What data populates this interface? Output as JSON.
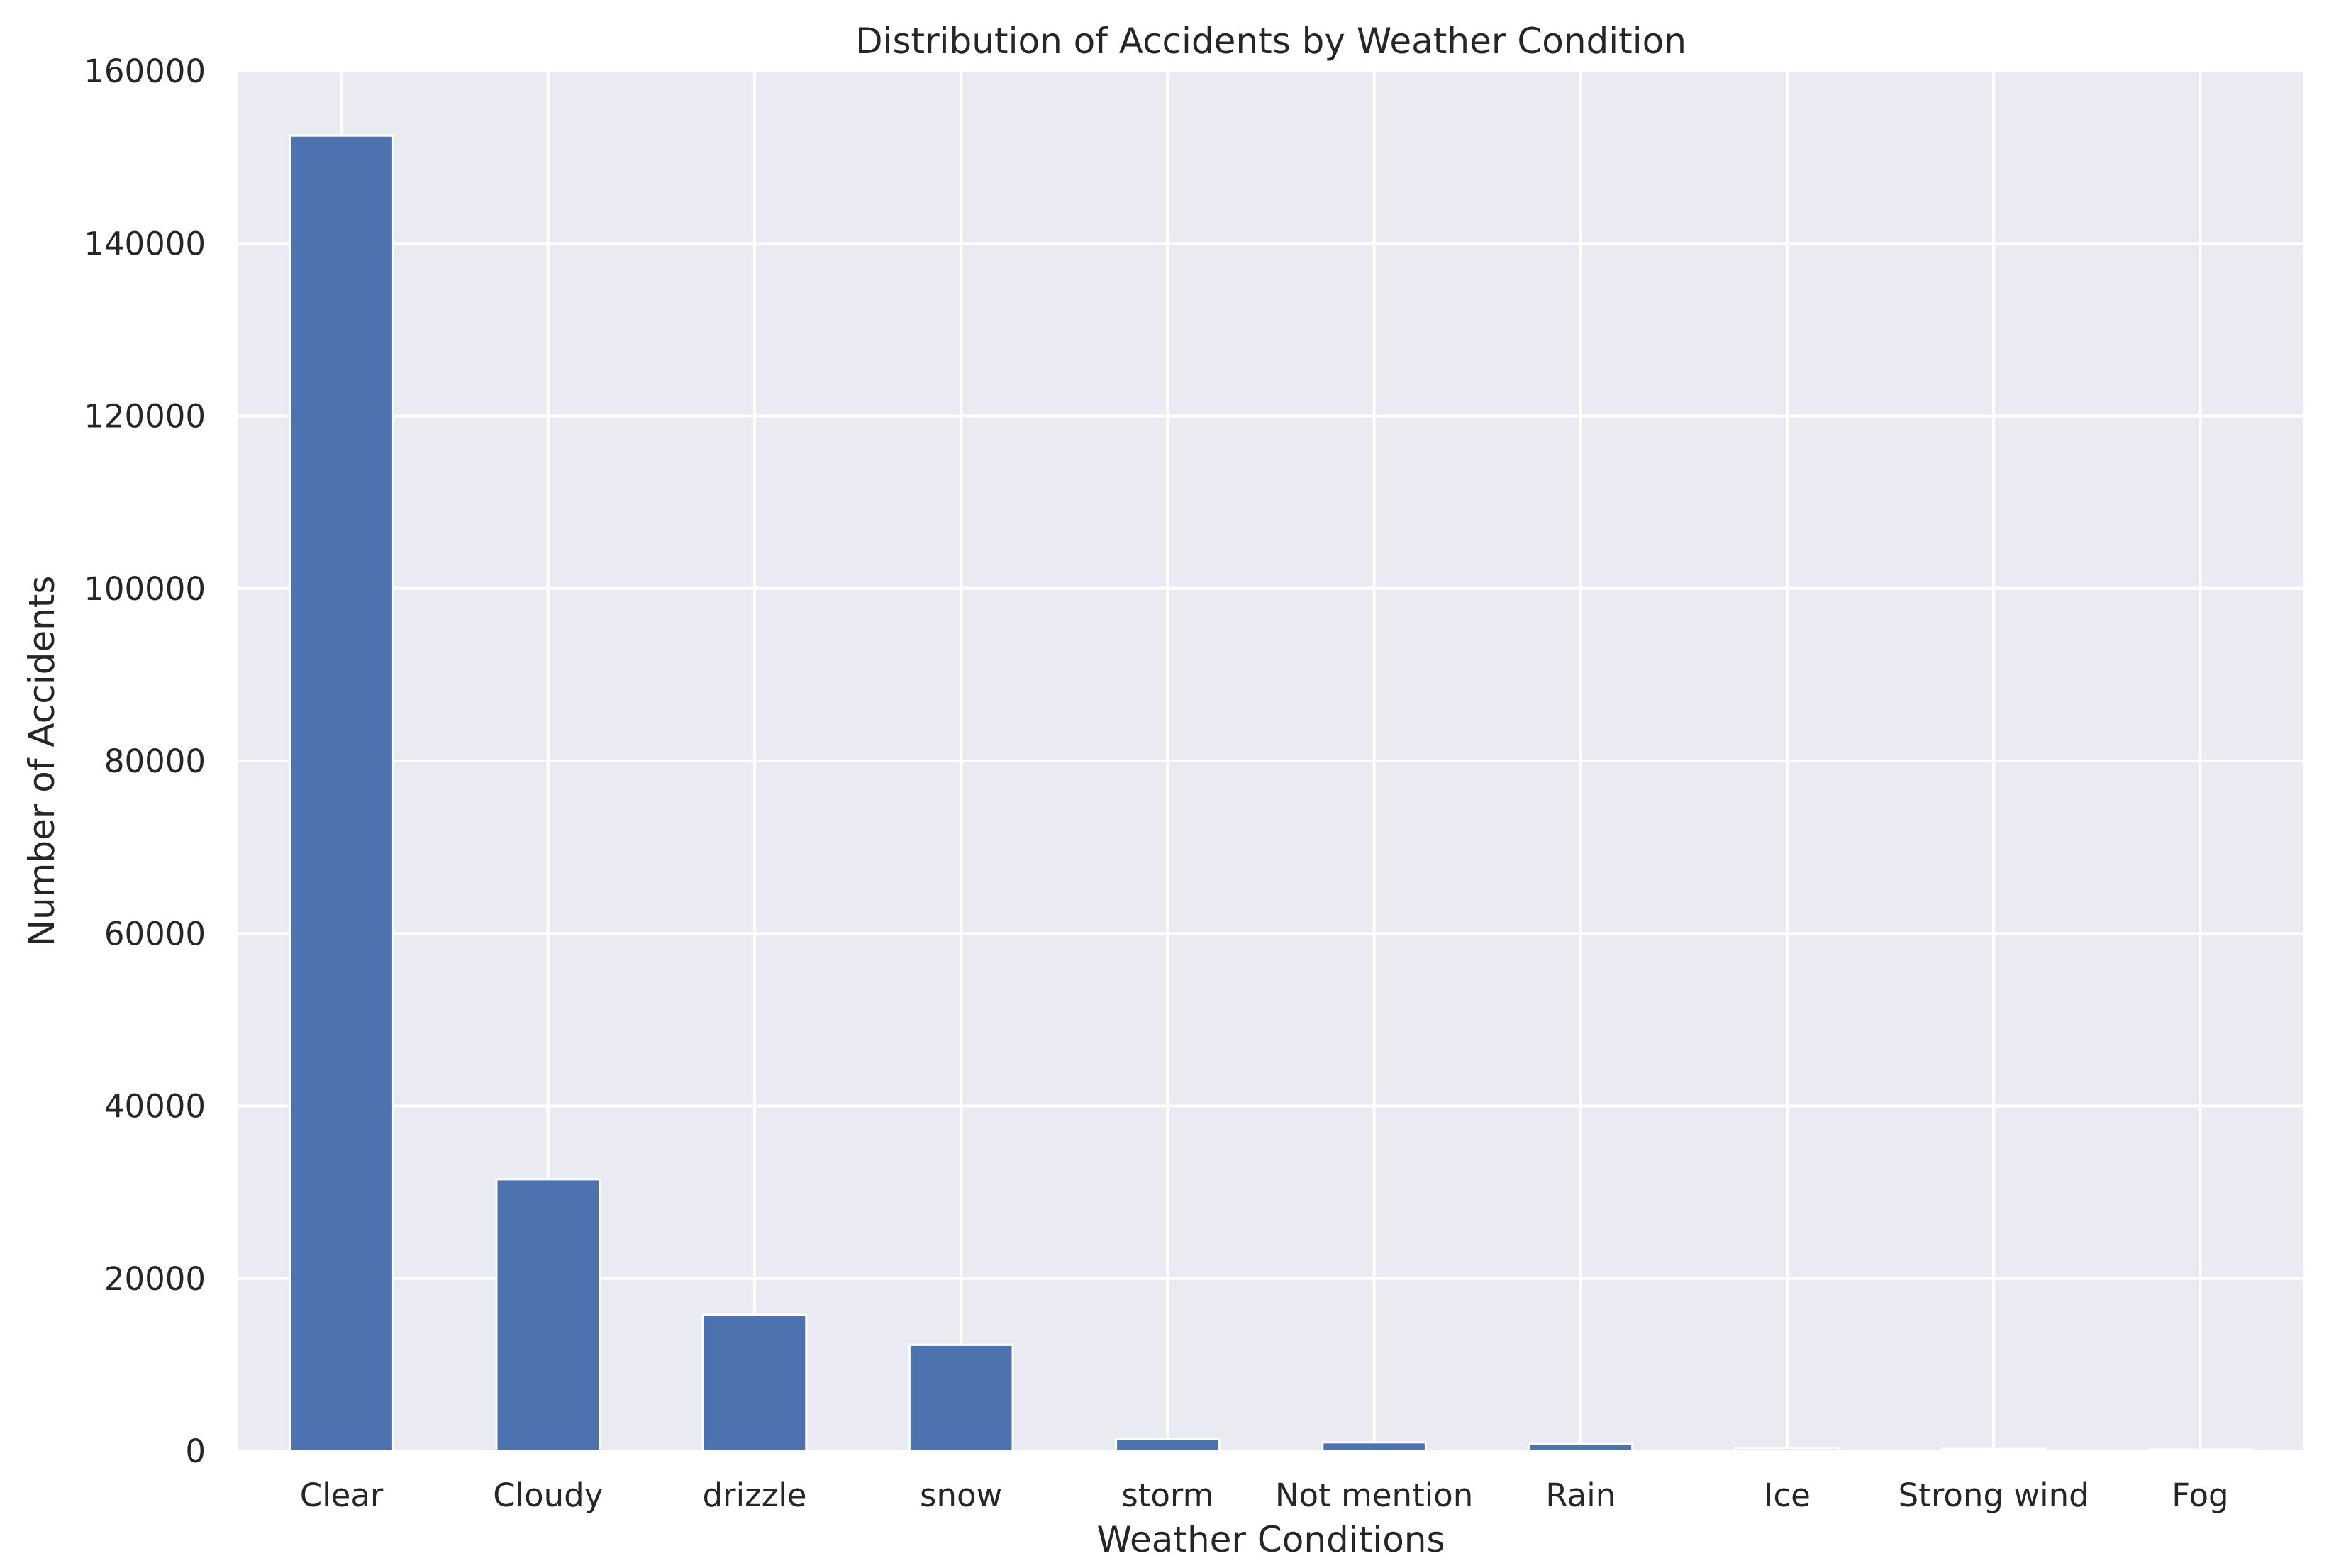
{
  "chart_data": {
    "type": "bar",
    "title": "Distribution of Accidents by Weather Condition",
    "xlabel": "Weather Conditions",
    "ylabel": "Number of Accidents",
    "categories": [
      "Clear",
      "Cloudy",
      "drizzle",
      "snow",
      "storm",
      "Not mention",
      "Rain",
      "Ice",
      "Strong wind",
      "Fog"
    ],
    "values": [
      152500,
      31500,
      15800,
      12300,
      1400,
      1000,
      800,
      300,
      250,
      150
    ],
    "ylim": [
      0,
      160000
    ],
    "yticks": [
      0,
      20000,
      40000,
      60000,
      80000,
      100000,
      120000,
      140000,
      160000
    ],
    "grid": true,
    "legend": "none",
    "colors": {
      "bar": "#4C72B0",
      "plot_background": "#EAEAF2",
      "grid": "#FFFFFF",
      "text": "#262626"
    }
  }
}
